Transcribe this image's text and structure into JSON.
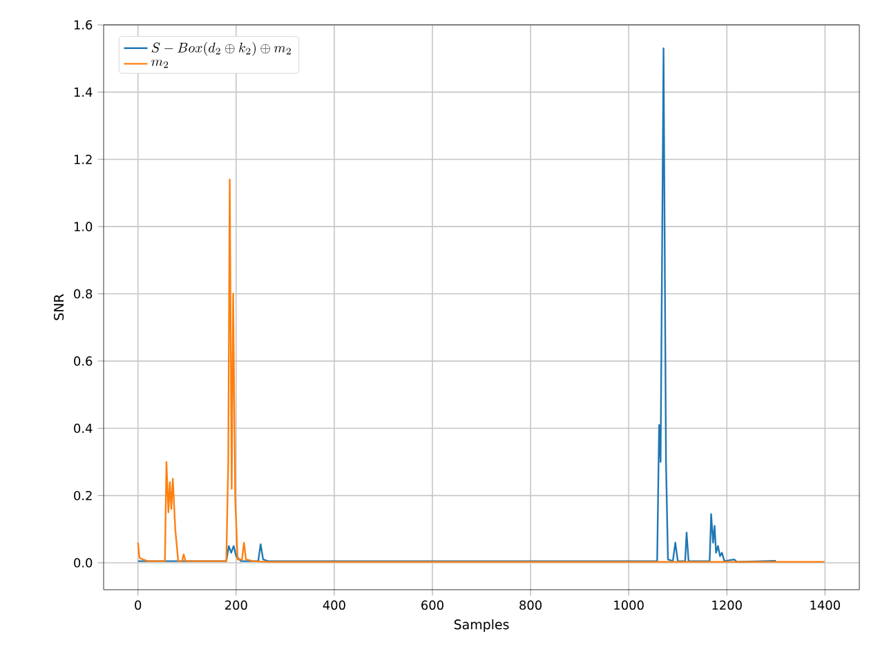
{
  "chart_data": {
    "type": "line",
    "xlabel": "Samples",
    "ylabel": "SNR",
    "xlim": [
      -70,
      1470
    ],
    "ylim": [
      -0.08,
      1.6
    ],
    "xticks": [
      0,
      200,
      400,
      600,
      800,
      1000,
      1200,
      1400
    ],
    "yticks": [
      {
        "value": 0,
        "label": "0.0"
      },
      {
        "value": 0.2,
        "label": "0.2"
      },
      {
        "value": 0.4,
        "label": "0.4"
      },
      {
        "value": 0.6,
        "label": "0.6"
      },
      {
        "value": 0.8,
        "label": "0.8"
      },
      {
        "value": 1.0,
        "label": "1.0"
      },
      {
        "value": 1.2,
        "label": "1.2"
      },
      {
        "value": 1.4,
        "label": "1.4"
      },
      {
        "value": 1.6,
        "label": "1.6"
      }
    ],
    "grid": true,
    "legend": "top left",
    "series": [
      {
        "name": "S-Box(d_2 \\oplus k_2) \\oplus m_2",
        "color": "#1f77b4",
        "x": [
          0,
          180,
          185,
          190,
          195,
          200,
          210,
          245,
          250,
          255,
          265,
          1058,
          1062,
          1065,
          1071,
          1076,
          1080,
          1090,
          1095,
          1100,
          1115,
          1118,
          1122,
          1165,
          1168,
          1172,
          1175,
          1178,
          1182,
          1186,
          1190,
          1195,
          1215,
          1220,
          1300
        ],
        "values": [
          0.005,
          0.005,
          0.05,
          0.03,
          0.05,
          0.02,
          0.005,
          0.005,
          0.055,
          0.01,
          0.005,
          0.005,
          0.41,
          0.3,
          1.53,
          0.3,
          0.01,
          0.005,
          0.06,
          0.005,
          0.005,
          0.09,
          0.005,
          0.005,
          0.145,
          0.06,
          0.11,
          0.03,
          0.05,
          0.02,
          0.03,
          0.005,
          0.01,
          0.003,
          0.006
        ]
      },
      {
        "name": "m_2",
        "color": "#ff7f0e",
        "x": [
          0,
          3,
          10,
          20,
          55,
          58,
          62,
          65,
          68,
          71,
          76,
          82,
          90,
          93,
          97,
          180,
          184,
          187,
          191,
          194,
          198,
          203,
          212,
          216,
          220,
          235,
          260,
          1399
        ],
        "values": [
          0.06,
          0.015,
          0.01,
          0.005,
          0.005,
          0.3,
          0.15,
          0.24,
          0.16,
          0.25,
          0.1,
          0.005,
          0.005,
          0.025,
          0.005,
          0.005,
          0.3,
          1.14,
          0.22,
          0.8,
          0.2,
          0.01,
          0.01,
          0.06,
          0.01,
          0.005,
          0.003,
          0.003
        ]
      }
    ]
  }
}
